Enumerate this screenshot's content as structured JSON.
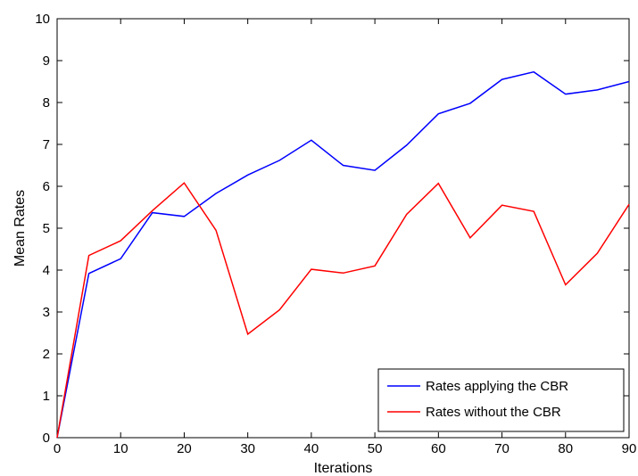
{
  "chart_data": {
    "type": "line",
    "xlabel": "Iterations",
    "ylabel": "Mean Rates",
    "xlim": [
      0,
      90
    ],
    "ylim": [
      0,
      10
    ],
    "xticks": [
      0,
      10,
      20,
      30,
      40,
      50,
      60,
      70,
      80,
      90
    ],
    "yticks": [
      0,
      1,
      2,
      3,
      4,
      5,
      6,
      7,
      8,
      9,
      10
    ],
    "grid": false,
    "legend_position": "bottom-right",
    "x": [
      0,
      5,
      10,
      15,
      20,
      25,
      30,
      35,
      40,
      45,
      50,
      55,
      60,
      65,
      70,
      75,
      80,
      85,
      90
    ],
    "series": [
      {
        "name": "Rates applying the CBR",
        "color": "#0000ff",
        "values": [
          0,
          3.92,
          4.27,
          5.37,
          5.28,
          5.83,
          6.27,
          6.62,
          7.1,
          6.5,
          6.38,
          6.98,
          7.73,
          7.98,
          8.55,
          8.73,
          8.2,
          8.3,
          8.5
        ]
      },
      {
        "name": "Rates without the CBR",
        "color": "#ff0000",
        "values": [
          0,
          4.35,
          4.7,
          5.42,
          6.08,
          4.95,
          2.47,
          3.05,
          4.02,
          3.93,
          4.1,
          5.33,
          6.07,
          4.77,
          5.55,
          5.4,
          3.65,
          4.4,
          5.57
        ]
      }
    ]
  }
}
